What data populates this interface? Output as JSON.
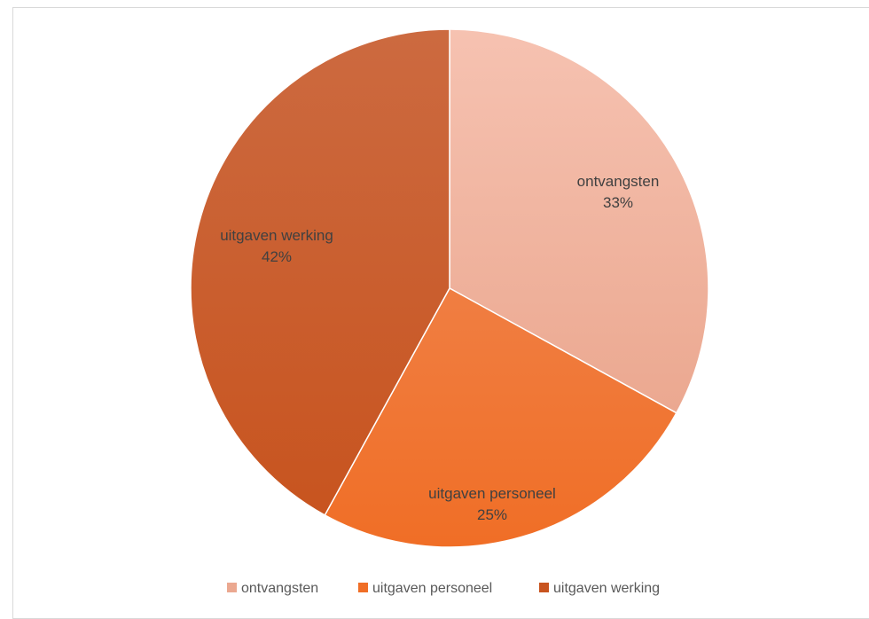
{
  "chart_data": {
    "type": "pie",
    "categories": [
      "ontvangsten",
      "uitgaven personeel",
      "uitgaven werking"
    ],
    "values": [
      33,
      25,
      42
    ],
    "value_labels": [
      "33%",
      "25%",
      "42%"
    ],
    "colors": [
      "#EBA890",
      "#F06E26",
      "#C8541F"
    ],
    "colors_light": [
      "#F6C2B1",
      "#F07E42",
      "#CC6A40"
    ],
    "start_angle_deg": 0,
    "direction": "clockwise",
    "legend_position": "bottom"
  }
}
